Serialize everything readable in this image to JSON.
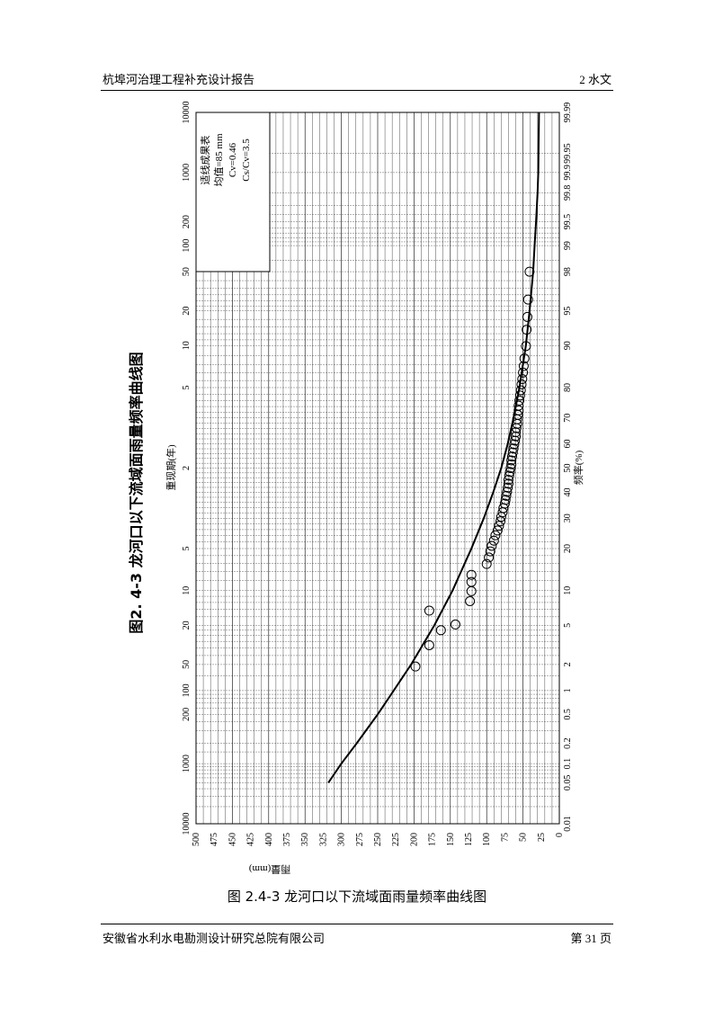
{
  "header": {
    "left": "杭埠河治理工程补充设计报告",
    "right": "2 水文"
  },
  "footer": {
    "left": "安徽省水利水电勘测设计研究总院有限公司",
    "right": "第 31 页"
  },
  "caption": "图 2.4-3 龙河口以下流域面雨量频率曲线图",
  "chart_data": {
    "type": "scatter",
    "title": "图2. 4-3 龙河口以下流域面雨量频率曲线图",
    "xlabel": "频率(%)",
    "x2label": "重现期(年)",
    "ylabel": "雨量(mm)",
    "x_scale": "probability",
    "freq_ticks": [
      "0.01",
      "0.05",
      "0.1",
      "0.2",
      "0.5",
      "1",
      "2",
      "5",
      "10",
      "20",
      "30",
      "40",
      "50",
      "60",
      "70",
      "80",
      "90",
      "95",
      "98",
      "99",
      "99.5",
      "99.8",
      "99.9",
      "99.95",
      "99.99"
    ],
    "return_ticks": [
      "10000",
      "1000",
      "200",
      "100",
      "50",
      "20",
      "10",
      "5",
      "2",
      "5",
      "10",
      "20",
      "50",
      "100",
      "200",
      "1000",
      "10000"
    ],
    "y_ticks": [
      "0",
      "25",
      "50",
      "75",
      "100",
      "125",
      "150",
      "175",
      "200",
      "225",
      "250",
      "275",
      "300",
      "325",
      "350",
      "375",
      "400",
      "425",
      "450",
      "475",
      "500"
    ],
    "ylim": [
      0,
      500
    ],
    "legend": {
      "line1": "适线成果表",
      "line2": "均值=85 mm",
      "line3": "Cv=0.46",
      "line4": "Cs/Cv=3.5"
    },
    "fitted_curve": {
      "freq": [
        0.05,
        0.1,
        0.2,
        0.5,
        1,
        2,
        5,
        10,
        20,
        30,
        40,
        50,
        60,
        70,
        80,
        90,
        95,
        98,
        99,
        99.5,
        99.8,
        99.9,
        99.99
      ],
      "values": [
        318,
        300,
        279,
        250,
        228,
        204,
        172,
        147,
        121,
        104,
        91,
        80,
        71,
        63,
        55,
        46,
        41,
        36,
        34,
        32,
        30,
        29,
        28
      ]
    },
    "observed": {
      "freq": [
        1.9,
        3.2,
        4.5,
        5.1,
        6.8,
        8.2,
        9.9,
        11.7,
        13.2,
        15.8,
        17.5,
        19.2,
        20.8,
        22.4,
        24.1,
        25.7,
        27.3,
        28.9,
        30.5,
        32.2,
        33.8,
        35.5,
        37.0,
        38.6,
        40.2,
        41.9,
        43.5,
        45.1,
        46.8,
        48.4,
        50.0,
        51.6,
        53.2,
        54.8,
        56.5,
        58.1,
        59.8,
        61.3,
        63.0,
        64.6,
        66.2,
        67.8,
        69.5,
        71.1,
        72.7,
        74.3,
        76.0,
        77.6,
        79.2,
        80.9,
        82.4,
        84.1,
        85.7,
        87.4,
        89.9,
        92.6,
        94.3,
        96.1,
        98.0
      ],
      "values": [
        198,
        179,
        163,
        143,
        179,
        123,
        121,
        121,
        121,
        100,
        97,
        95,
        93,
        90,
        88,
        85,
        83,
        81,
        80,
        78,
        77,
        75,
        74,
        73,
        72,
        71,
        70,
        70,
        69,
        68,
        67,
        66,
        66,
        65,
        64,
        63,
        62,
        61,
        60,
        60,
        59,
        58,
        58,
        57,
        56,
        56,
        55,
        54,
        53,
        52,
        51,
        50,
        49,
        48,
        46,
        45,
        44,
        43,
        41
      ]
    }
  }
}
